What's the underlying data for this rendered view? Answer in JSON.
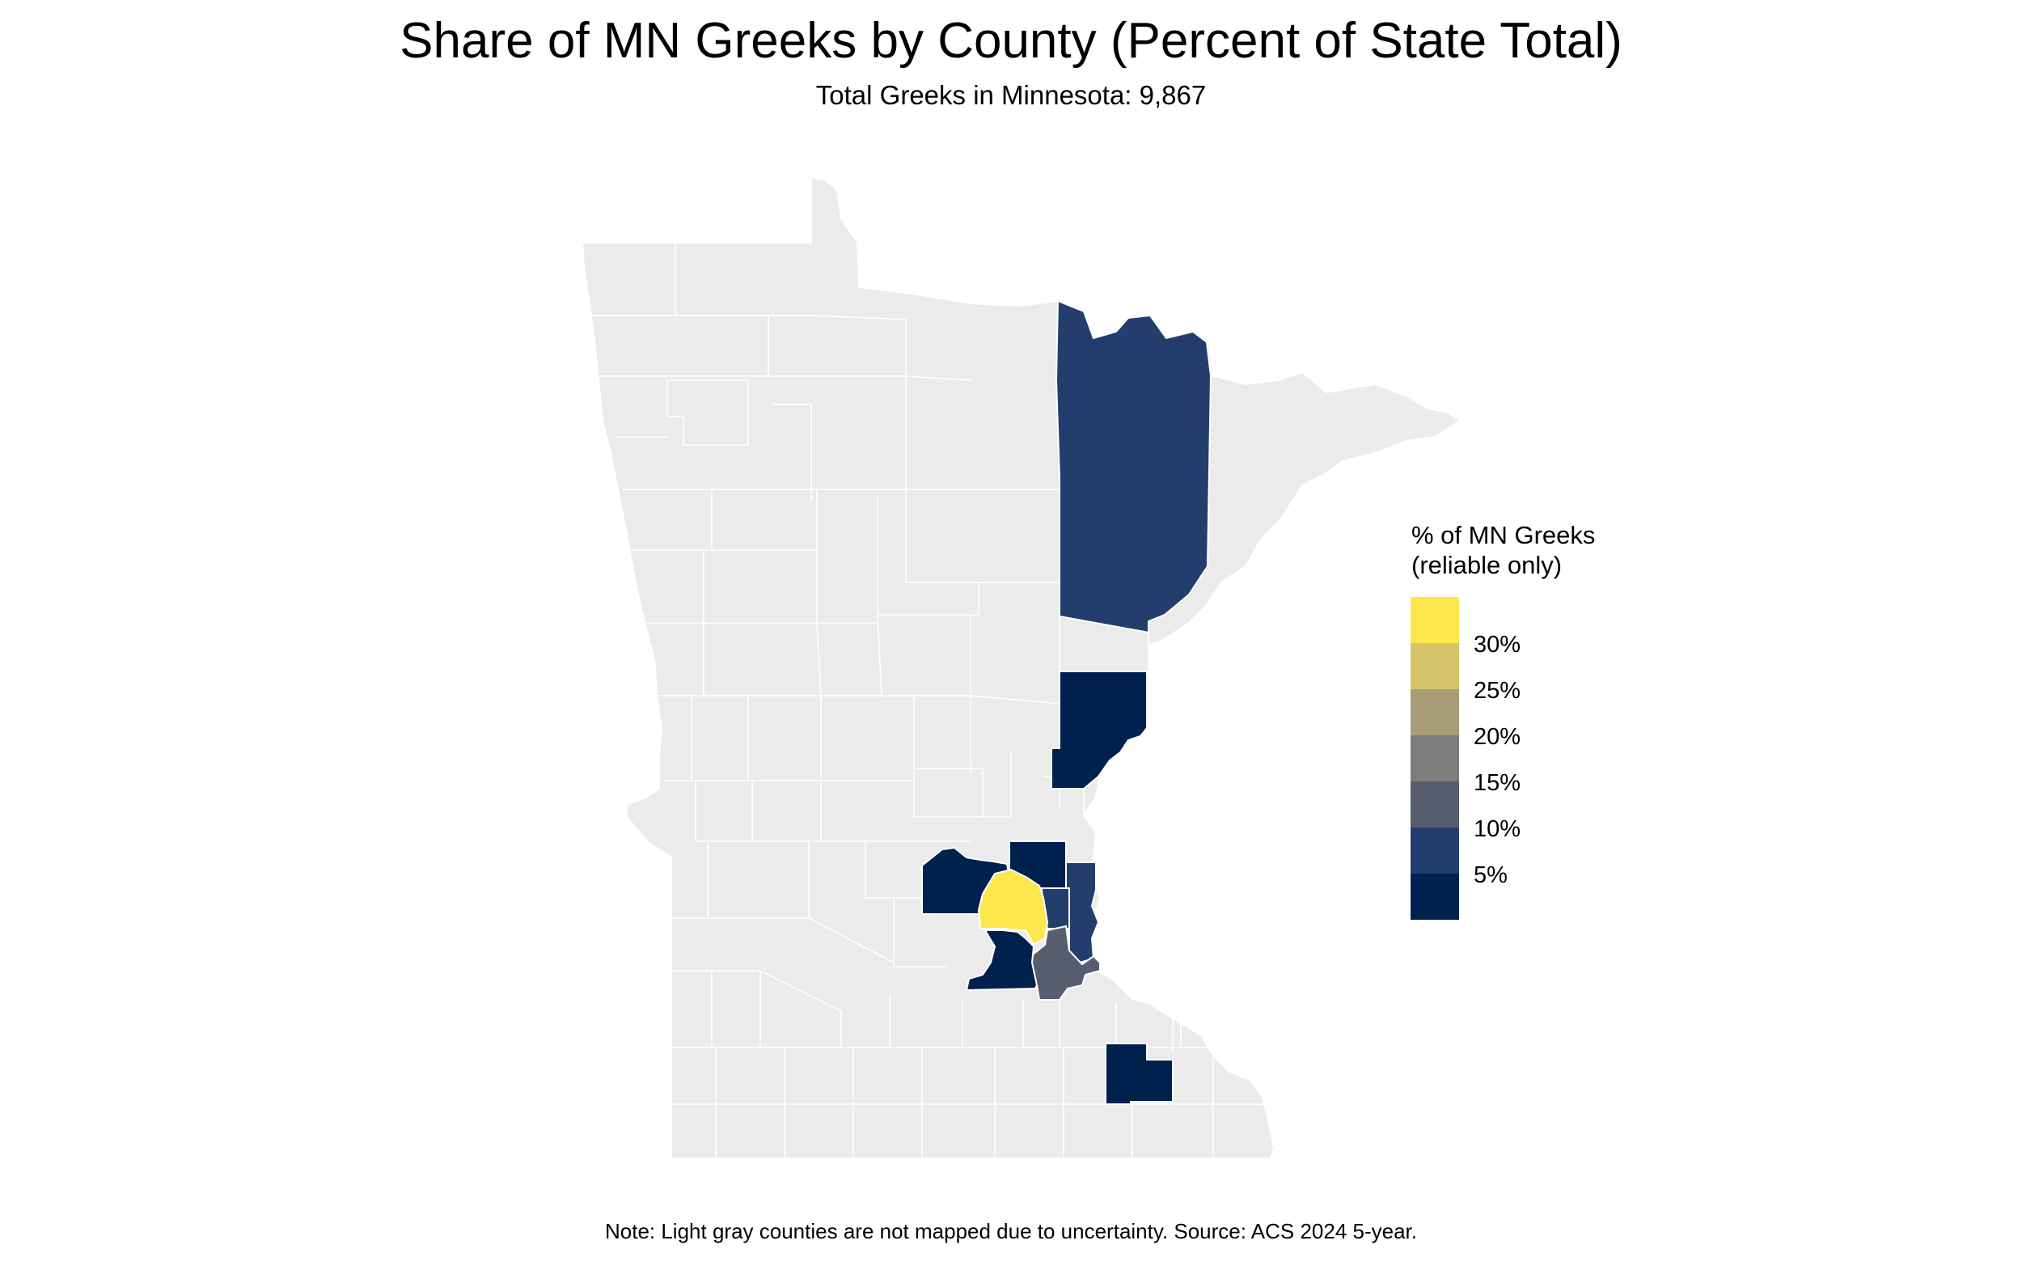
{
  "title": "Share of MN Greeks by County (Percent of State Total)",
  "subtitle": "Total Greeks in Minnesota: 9,867",
  "legend": {
    "title_line1": "% of MN Greeks",
    "title_line2": "(reliable only)",
    "colors": [
      "#fde74c",
      "#d6c46a",
      "#a89d77",
      "#7d7d7d",
      "#575d6f",
      "#233d6d",
      "#00204e"
    ],
    "labels": [
      "30%",
      "25%",
      "20%",
      "15%",
      "10%",
      "5%"
    ]
  },
  "note": "Note: Light gray counties are not mapped due to uncertainty. Source: ACS 2024 5-year.",
  "map_colors": {
    "unmapped": "#ebebeb",
    "border": "#ffffff"
  }
}
